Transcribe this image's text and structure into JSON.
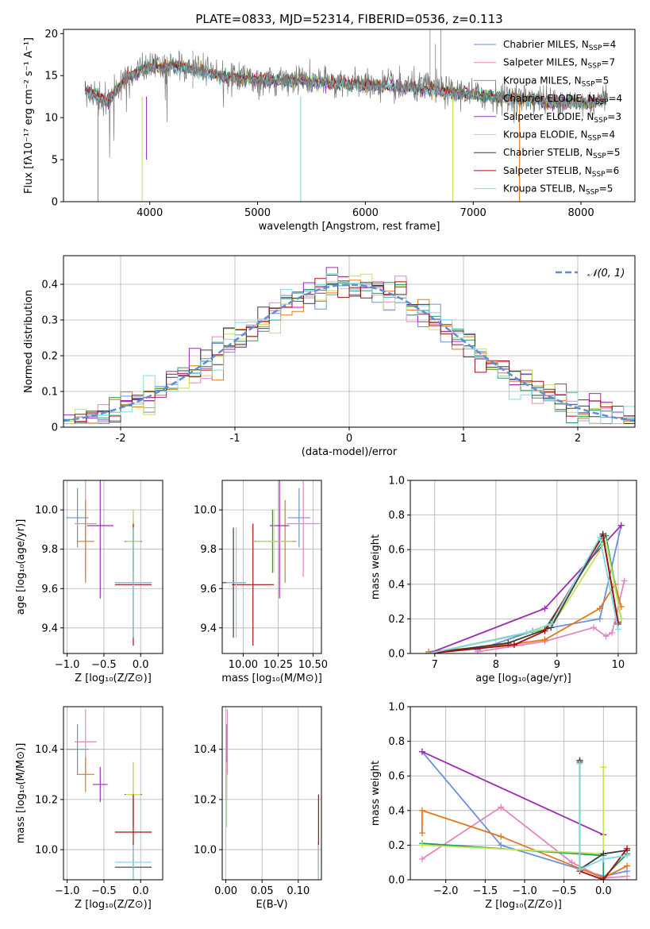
{
  "figure_title": "PLATE=0833, MJD=52314, FIBERID=0536, z=0.113",
  "legend": [
    {
      "name": "Chabrier MILES",
      "nssp": "4",
      "color": "#6b8fde"
    },
    {
      "name": "Salpeter MILES",
      "nssp": "7",
      "color": "#e585c1"
    },
    {
      "name": "Kroupa MILES",
      "nssp": "5",
      "color": "#e2781c"
    },
    {
      "name": "Chabrier ELODIE",
      "nssp": "4",
      "color": "#1f9e5f"
    },
    {
      "name": "Salpeter ELODIE",
      "nssp": "3",
      "color": "#9c2cb4"
    },
    {
      "name": "Kroupa ELODIE",
      "nssp": "4",
      "color": "#c4e35a"
    },
    {
      "name": "Chabrier STELIB",
      "nssp": "5",
      "color": "#3c3c3c"
    },
    {
      "name": "Salpeter STELIB",
      "nssp": "6",
      "color": "#a30f12"
    },
    {
      "name": "Kroupa STELIB",
      "nssp": "5",
      "color": "#7fdbe0"
    }
  ],
  "chart_data": [
    {
      "id": "spectrum",
      "type": "line",
      "xlabel": "wavelength [Angstrom, rest frame]",
      "ylabel": "Flux [fλ10⁻¹⁷ erg cm⁻² s⁻¹ A⁻¹]",
      "xlim": [
        3200,
        8500
      ],
      "ylim": [
        0,
        20.5
      ],
      "xticks": [
        4000,
        5000,
        6000,
        7000,
        8000
      ],
      "yticks": [
        0,
        5,
        10,
        15,
        20
      ],
      "data_series": {
        "name": "data",
        "color": "#7a7a7a",
        "x": [
          3400,
          3500,
          3600,
          3700,
          3800,
          3900,
          4000,
          4100,
          4200,
          4300,
          4400,
          4500,
          4600,
          4700,
          4800,
          4900,
          5000,
          5100,
          5200,
          5300,
          5400,
          5500,
          5600,
          5700,
          5800,
          5900,
          6000,
          6100,
          6200,
          6300,
          6400,
          6500,
          6600,
          6700,
          6800,
          6900,
          7000,
          7100,
          7200,
          7300,
          7400,
          7500,
          7600,
          7700,
          7800,
          7900,
          8000,
          8100,
          8200,
          8250
        ],
        "y": [
          13.5,
          12.5,
          11.8,
          13.5,
          15.0,
          15.5,
          16.2,
          16.0,
          16.5,
          16.3,
          15.8,
          15.6,
          15.2,
          14.8,
          14.8,
          14.5,
          14.6,
          14.8,
          14.3,
          14.5,
          14.6,
          14.2,
          14.3,
          14.1,
          14.3,
          13.9,
          14.0,
          13.8,
          14.0,
          13.6,
          13.8,
          13.5,
          13.8,
          13.2,
          13.0,
          13.0,
          12.8,
          12.6,
          12.6,
          12.4,
          12.3,
          12.3,
          12.2,
          12.0,
          12.0,
          11.9,
          11.8,
          11.8,
          12.2,
          12.6
        ]
      },
      "model_series": {
        "x": [
          3400,
          3500,
          3600,
          3700,
          3800,
          3900,
          4000,
          4100,
          4200,
          4300,
          4400,
          4500,
          4600,
          4700,
          4800,
          4900,
          5000,
          5100,
          5200,
          5300,
          5400,
          5500,
          5600,
          5700,
          5800,
          5900,
          6000,
          6100,
          6200,
          6300,
          6400,
          6500,
          6600,
          6700,
          6800,
          6900,
          7000,
          7100,
          7200,
          7300,
          7400,
          7500,
          7600,
          7700,
          7800,
          7900,
          8000,
          8100,
          8200,
          8250
        ],
        "y": [
          13.3,
          12.6,
          12.0,
          13.4,
          14.8,
          15.4,
          16.0,
          15.9,
          16.2,
          16.0,
          15.6,
          15.4,
          15.1,
          14.8,
          14.7,
          14.5,
          14.5,
          14.6,
          14.3,
          14.4,
          14.4,
          14.2,
          14.2,
          14.0,
          14.1,
          13.9,
          13.9,
          13.7,
          13.8,
          13.5,
          13.6,
          13.4,
          13.5,
          13.1,
          12.9,
          12.9,
          12.7,
          12.5,
          12.5,
          12.3,
          12.2,
          12.2,
          12.1,
          11.9,
          11.9,
          11.8,
          11.7,
          11.7,
          12.0,
          12.4
        ],
        "offsets": [
          0.0,
          0.3,
          -0.2,
          0.4,
          -0.3,
          0.2,
          -0.1,
          0.5,
          -0.4
        ]
      },
      "absorption_dips": [
        {
          "x": 3520,
          "to": 0,
          "color": "#e2781c"
        },
        {
          "x": 3930,
          "to": 0,
          "color": "#c4e35a"
        },
        {
          "x": 5400,
          "to": 0,
          "color": "#7fdbe0"
        },
        {
          "x": 6810,
          "to": 0,
          "color": "#c4e35a"
        },
        {
          "x": 7430,
          "to": 0,
          "color": "#e2781c"
        },
        {
          "x": 3970,
          "to": 5,
          "color": "#9c2cb4"
        }
      ]
    },
    {
      "id": "residuals",
      "type": "histogram",
      "xlabel": "(data-model)/error",
      "ylabel": "Normed distribution",
      "xlim": [
        -2.5,
        2.5
      ],
      "ylim": [
        0,
        0.48
      ],
      "xticks": [
        -2,
        -1,
        0,
        1,
        2
      ],
      "yticks": [
        0.0,
        0.1,
        0.2,
        0.3,
        0.4
      ],
      "bin_width": 0.1,
      "reference": {
        "name": "N(0,1)",
        "label": "𝒩(0, 1)",
        "color": "#5b8ed6"
      }
    },
    {
      "id": "age_vs_Z",
      "type": "errorbar",
      "xlabel": "Z [log₁₀(Z/Z⊙)]",
      "ylabel": "age  [log₁₀(age/yr)]",
      "xlim": [
        -1.05,
        0.3
      ],
      "ylim": [
        9.27,
        10.15
      ],
      "xticks": [
        -1.0,
        -0.5,
        0.0
      ],
      "xticklabels": [
        "−1.0",
        "−0.5",
        "0.0"
      ],
      "yticks": [
        9.4,
        9.6,
        9.8,
        10.0
      ],
      "yticklabels": [
        "9.4",
        "9.6",
        "9.8",
        "10.0"
      ],
      "points": [
        {
          "x": -0.86,
          "y": 9.96,
          "xerr": 0.15,
          "yerr": 0.15,
          "color": "#6b8fde"
        },
        {
          "x": -0.75,
          "y": 9.93,
          "xerr": 0.15,
          "yerr": 0.27,
          "color": "#e585c1"
        },
        {
          "x": -0.75,
          "y": 9.84,
          "xerr": 0.12,
          "yerr": 0.21,
          "color": "#e2781c"
        },
        {
          "x": -0.1,
          "y": 9.84,
          "xerr": 0.12,
          "yerr": 0.16,
          "color": "#1f9e5f"
        },
        {
          "x": -0.55,
          "y": 9.92,
          "xerr": 0.18,
          "yerr": 0.37,
          "color": "#9c2cb4"
        },
        {
          "x": -0.1,
          "y": 9.84,
          "xerr": 0.1,
          "yerr": 0.16,
          "color": "#c4e35a"
        },
        {
          "x": -0.1,
          "y": 9.63,
          "xerr": 0.25,
          "yerr": 0.28,
          "color": "#3c3c3c"
        },
        {
          "x": -0.1,
          "y": 9.62,
          "xerr": 0.25,
          "yerr": 0.31,
          "color": "#a30f12"
        },
        {
          "x": -0.1,
          "y": 9.63,
          "xerr": 0.25,
          "yerr": 0.28,
          "color": "#7fdbe0"
        }
      ]
    },
    {
      "id": "age_vs_mass",
      "type": "errorbar",
      "xlabel": "mass [log₁₀(M/M⊙)]",
      "ylabel": "",
      "xlim": [
        9.85,
        10.56
      ],
      "ylim": [
        9.27,
        10.15
      ],
      "xticks": [
        10.0,
        10.25,
        10.5
      ],
      "xticklabels": [
        "10.00",
        "10.25",
        "10.50"
      ],
      "yticks": [
        9.4,
        9.6,
        9.8,
        10.0
      ],
      "yticklabels": [
        "9.4",
        "9.6",
        "9.8",
        "10.0"
      ],
      "points": [
        {
          "x": 10.4,
          "y": 9.96,
          "xerr": 0.08,
          "yerr": 0.15,
          "color": "#6b8fde"
        },
        {
          "x": 10.43,
          "y": 9.93,
          "xerr": 0.12,
          "yerr": 0.27,
          "color": "#e585c1"
        },
        {
          "x": 10.3,
          "y": 9.84,
          "xerr": 0.08,
          "yerr": 0.21,
          "color": "#e2781c"
        },
        {
          "x": 10.21,
          "y": 9.84,
          "xerr": 0.13,
          "yerr": 0.16,
          "color": "#1f9e5f"
        },
        {
          "x": 10.26,
          "y": 9.92,
          "xerr": 0.07,
          "yerr": 0.37,
          "color": "#9c2cb4"
        },
        {
          "x": 10.22,
          "y": 9.84,
          "xerr": 0.13,
          "yerr": 0.16,
          "color": "#c4e35a"
        },
        {
          "x": 9.93,
          "y": 9.63,
          "xerr": 0.09,
          "yerr": 0.28,
          "color": "#3c3c3c"
        },
        {
          "x": 10.07,
          "y": 9.62,
          "xerr": 0.15,
          "yerr": 0.31,
          "color": "#a30f12"
        },
        {
          "x": 9.95,
          "y": 9.63,
          "xerr": 0.07,
          "yerr": 0.28,
          "color": "#7fdbe0"
        }
      ]
    },
    {
      "id": "weight_vs_age",
      "type": "line",
      "xlabel": "age  [log₁₀(age/yr)]",
      "ylabel": "mass weight",
      "xlim": [
        6.6,
        10.3
      ],
      "ylim": [
        0,
        1.0
      ],
      "xticks": [
        7,
        8,
        9,
        10
      ],
      "xticklabels": [
        "7",
        "8",
        "9",
        "10"
      ],
      "yticks": [
        0.0,
        0.2,
        0.4,
        0.6,
        0.8,
        1.0
      ],
      "yticklabels": [
        "0.0",
        "0.2",
        "0.4",
        "0.6",
        "0.8",
        "1.0"
      ],
      "series": [
        {
          "color": "#6b8fde",
          "x": [
            7.7,
            8.6,
            9.7,
            10.05
          ],
          "y": [
            0.02,
            0.13,
            0.2,
            0.74
          ]
        },
        {
          "color": "#e585c1",
          "x": [
            7.7,
            8.8,
            9.6,
            9.8,
            9.9,
            10.1
          ],
          "y": [
            0.01,
            0.07,
            0.15,
            0.1,
            0.12,
            0.42
          ]
        },
        {
          "color": "#e2781c",
          "x": [
            6.9,
            8.2,
            8.8,
            9.7,
            9.95,
            10.05
          ],
          "y": [
            0.01,
            0.05,
            0.08,
            0.26,
            0.4,
            0.27
          ]
        },
        {
          "color": "#1f9e5f",
          "x": [
            6.9,
            8.8,
            9.8,
            10.05
          ],
          "y": [
            0.0,
            0.14,
            0.68,
            0.2
          ]
        },
        {
          "color": "#9c2cb4",
          "x": [
            6.9,
            8.8,
            10.05
          ],
          "y": [
            0.0,
            0.26,
            0.74
          ]
        },
        {
          "color": "#c4e35a",
          "x": [
            6.9,
            8.9,
            9.8,
            10.05
          ],
          "y": [
            0.0,
            0.15,
            0.65,
            0.2
          ]
        },
        {
          "color": "#3c3c3c",
          "x": [
            6.9,
            8.2,
            8.9,
            9.75,
            10.0
          ],
          "y": [
            0.0,
            0.06,
            0.15,
            0.69,
            0.17
          ]
        },
        {
          "color": "#a30f12",
          "x": [
            6.9,
            8.3,
            8.8,
            9.75,
            10.0
          ],
          "y": [
            0.0,
            0.05,
            0.13,
            0.68,
            0.18
          ]
        },
        {
          "color": "#7fdbe0",
          "x": [
            6.9,
            8.5,
            8.9,
            9.7,
            10.0
          ],
          "y": [
            0.0,
            0.12,
            0.17,
            0.67,
            0.14
          ]
        }
      ]
    },
    {
      "id": "mass_vs_Z",
      "type": "errorbar",
      "xlabel": "Z [log₁₀(Z/Z⊙)]",
      "ylabel": "mass [log₁₀(M/M⊙)]",
      "xlim": [
        -1.05,
        0.3
      ],
      "ylim": [
        9.88,
        10.57
      ],
      "xticks": [
        -1.0,
        -0.5,
        0.0
      ],
      "xticklabels": [
        "−1.0",
        "−0.5",
        "0.0"
      ],
      "yticks": [
        10.0,
        10.2,
        10.4
      ],
      "yticklabels": [
        "10.0",
        "10.2",
        "10.4"
      ],
      "points": [
        {
          "x": -0.86,
          "y": 10.4,
          "xerr": 0.15,
          "yerr": 0.1,
          "color": "#6b8fde"
        },
        {
          "x": -0.75,
          "y": 10.43,
          "xerr": 0.15,
          "yerr": 0.13,
          "color": "#e585c1"
        },
        {
          "x": -0.75,
          "y": 10.3,
          "xerr": 0.12,
          "yerr": 0.07,
          "color": "#e2781c"
        },
        {
          "x": -0.1,
          "y": 10.22,
          "xerr": 0.12,
          "yerr": 0.13,
          "color": "#1f9e5f"
        },
        {
          "x": -0.55,
          "y": 10.26,
          "xerr": 0.1,
          "yerr": 0.07,
          "color": "#9c2cb4"
        },
        {
          "x": -0.1,
          "y": 10.22,
          "xerr": 0.1,
          "yerr": 0.13,
          "color": "#c4e35a"
        },
        {
          "x": -0.1,
          "y": 9.93,
          "xerr": 0.25,
          "yerr": 0.1,
          "color": "#3c3c3c"
        },
        {
          "x": -0.1,
          "y": 10.07,
          "xerr": 0.25,
          "yerr": 0.15,
          "color": "#a30f12"
        },
        {
          "x": -0.1,
          "y": 9.95,
          "xerr": 0.25,
          "yerr": 0.07,
          "color": "#7fdbe0"
        }
      ]
    },
    {
      "id": "mass_vs_ebv",
      "type": "errorbar",
      "xlabel": "E(B-V)",
      "ylabel": "",
      "xlim": [
        -0.005,
        0.132
      ],
      "ylim": [
        9.88,
        10.57
      ],
      "xticks": [
        0.0,
        0.05,
        0.1
      ],
      "xticklabels": [
        "0.00",
        "0.05",
        "0.10"
      ],
      "yticks": [
        10.0,
        10.2,
        10.4
      ],
      "yticklabels": [
        "10.0",
        "10.2",
        "10.4"
      ],
      "points": [
        {
          "x": 0.001,
          "y": 10.4,
          "xerr": 0.0,
          "yerr": 0.1,
          "color": "#6b8fde"
        },
        {
          "x": 0.002,
          "y": 10.43,
          "xerr": 0.0,
          "yerr": 0.13,
          "color": "#e585c1"
        },
        {
          "x": 0.001,
          "y": 10.3,
          "xerr": 0.0,
          "yerr": 0.07,
          "color": "#e2781c"
        },
        {
          "x": 0.001,
          "y": 10.22,
          "xerr": 0.0,
          "yerr": 0.13,
          "color": "#1f9e5f"
        },
        {
          "x": 0.001,
          "y": 10.26,
          "xerr": 0.0,
          "yerr": 0.07,
          "color": "#9c2cb4"
        },
        {
          "x": 0.001,
          "y": 10.22,
          "xerr": 0.0,
          "yerr": 0.13,
          "color": "#c4e35a"
        },
        {
          "x": 0.128,
          "y": 9.93,
          "xerr": 0.0,
          "yerr": 0.1,
          "color": "#3c3c3c"
        },
        {
          "x": 0.128,
          "y": 10.07,
          "xerr": 0.0,
          "yerr": 0.15,
          "color": "#a30f12"
        },
        {
          "x": 0.128,
          "y": 9.95,
          "xerr": 0.0,
          "yerr": 0.07,
          "color": "#7fdbe0"
        }
      ]
    },
    {
      "id": "weight_vs_Z",
      "type": "line",
      "xlabel": "Z [log₁₀(Z/Z⊙)]",
      "ylabel": "mass weight",
      "xlim": [
        -2.45,
        0.42
      ],
      "ylim": [
        0,
        1.0
      ],
      "xticks": [
        -2.0,
        -1.5,
        -1.0,
        -0.5,
        0.0
      ],
      "xticklabels": [
        "−2.0",
        "−1.5",
        "−1.0",
        "−0.5",
        "0.0"
      ],
      "yticks": [
        0.0,
        0.2,
        0.4,
        0.6,
        0.8,
        1.0
      ],
      "yticklabels": [
        "0.0",
        "0.2",
        "0.4",
        "0.6",
        "0.8",
        "1.0"
      ],
      "series": [
        {
          "color": "#6b8fde",
          "x": [
            -2.3,
            -1.3,
            0.0,
            0.3
          ],
          "y": [
            0.74,
            0.2,
            0.02,
            0.05
          ]
        },
        {
          "color": "#e585c1",
          "x": [
            -2.3,
            -1.3,
            -0.4,
            0.0,
            0.3
          ],
          "y": [
            0.12,
            0.42,
            0.1,
            0.01,
            0.02
          ]
        },
        {
          "color": "#e2781c",
          "x": [
            -2.3,
            -2.3,
            -1.3,
            0.0,
            0.3
          ],
          "y": [
            0.27,
            0.4,
            0.25,
            0.01,
            0.08
          ]
        },
        {
          "color": "#1f9e5f",
          "x": [
            -2.3,
            0.0,
            0.0,
            0.3
          ],
          "y": [
            0.21,
            0.14,
            0.01,
            0.15
          ]
        },
        {
          "color": "#9c2cb4",
          "x": [
            -2.3,
            0.0
          ],
          "y": [
            0.74,
            0.26
          ]
        },
        {
          "color": "#c4e35a",
          "x": [
            -2.3,
            0.0,
            0.0
          ],
          "y": [
            0.2,
            0.15,
            0.65
          ]
        },
        {
          "color": "#3c3c3c",
          "x": [
            -0.3,
            -0.3,
            0.0,
            0.3
          ],
          "y": [
            0.69,
            0.06,
            0.15,
            0.17
          ]
        },
        {
          "color": "#a30f12",
          "x": [
            -0.3,
            -0.3,
            0.0,
            0.3
          ],
          "y": [
            0.68,
            0.05,
            0.0,
            0.18
          ]
        },
        {
          "color": "#7fdbe0",
          "x": [
            -0.3,
            -0.3,
            0.0,
            0.3
          ],
          "y": [
            0.67,
            0.06,
            0.12,
            0.14
          ]
        }
      ]
    }
  ]
}
